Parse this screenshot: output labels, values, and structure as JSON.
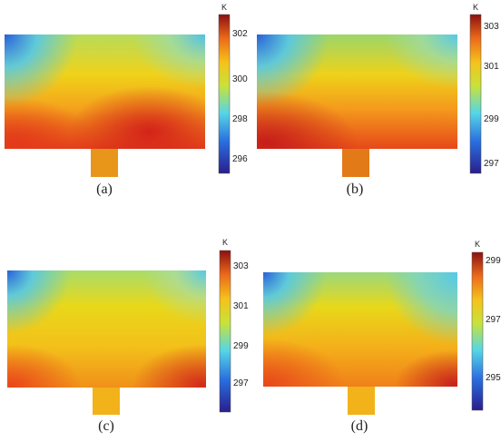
{
  "panels": [
    {
      "caption": "(a)",
      "unit": "K",
      "ticks": [
        "302",
        "300",
        "298",
        "296"
      ],
      "hot": [
        "#d4231a",
        "#e33a1a",
        "#c8201a"
      ],
      "range": [
        295.5,
        303
      ]
    },
    {
      "caption": "(b)",
      "unit": "K",
      "ticks": [
        "303",
        "301",
        "299",
        "297"
      ],
      "hot": [
        "#c61e1a",
        "#e8461a",
        "#e8501a"
      ],
      "range": [
        296.5,
        304
      ]
    },
    {
      "caption": "(c)",
      "unit": "K",
      "ticks": [
        "303",
        "301",
        "299",
        "297"
      ],
      "hot": [
        "#e9481a",
        "#f0a020",
        "#d22a1a"
      ],
      "range": [
        295.8,
        304
      ]
    },
    {
      "caption": "(d)",
      "unit": "K",
      "ticks": [
        "299",
        "297",
        "295"
      ],
      "hot": [
        "#e84a1a",
        "#f5a623",
        "#c8231a"
      ],
      "range": [
        293.8,
        299.6
      ]
    }
  ],
  "colors": {
    "cold": "#2a5fd8",
    "cool": "#55c8e8",
    "mid": "#f5d21a",
    "warm": "#f5a623",
    "hot": "#d8281a",
    "inlet": "#e8961a"
  }
}
